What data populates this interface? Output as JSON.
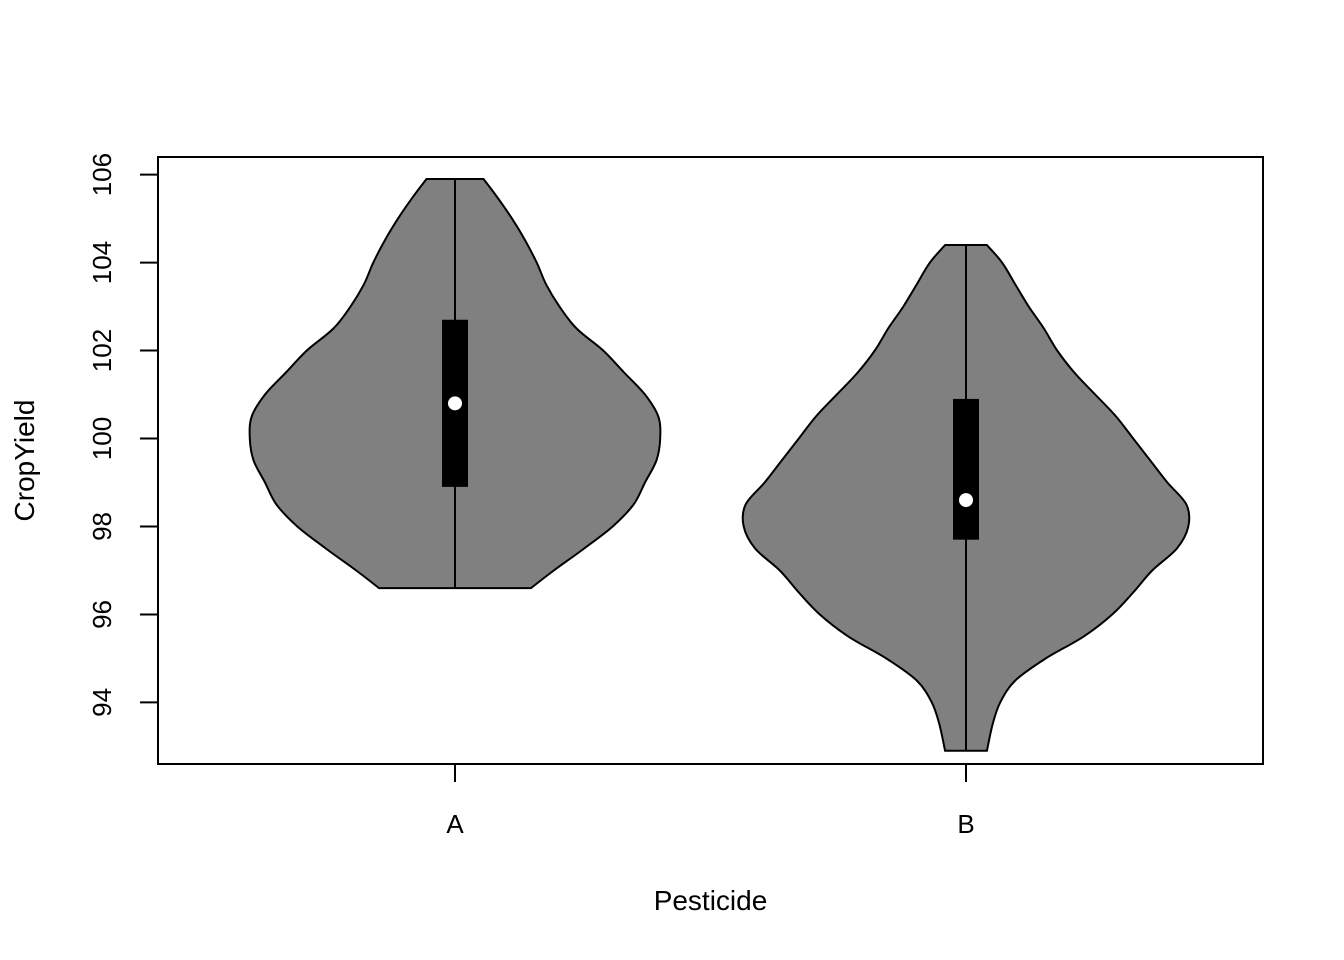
{
  "chart_data": {
    "type": "violin",
    "xlabel": "Pesticide",
    "ylabel": "CropYield",
    "ylim": [
      92.6,
      106.4
    ],
    "yticks": [
      94,
      96,
      98,
      100,
      102,
      104,
      106
    ],
    "categories": [
      "A",
      "B"
    ],
    "grid": false,
    "colors": {
      "violin_fill": "#808080",
      "box_fill": "#000000",
      "median_point": "#ffffff",
      "outline": "#000000"
    },
    "violins": [
      {
        "category": "A",
        "min": 96.6,
        "q1": 98.9,
        "median": 100.8,
        "q3": 102.7,
        "max": 105.9,
        "density_profile": [
          [
            96.6,
            0.4
          ],
          [
            97.0,
            0.52
          ],
          [
            97.5,
            0.68
          ],
          [
            98.0,
            0.83
          ],
          [
            98.5,
            0.94
          ],
          [
            99.0,
            1.0
          ],
          [
            99.5,
            1.06
          ],
          [
            100.0,
            1.08
          ],
          [
            100.5,
            1.07
          ],
          [
            101.0,
            1.0
          ],
          [
            101.5,
            0.89
          ],
          [
            102.0,
            0.78
          ],
          [
            102.5,
            0.64
          ],
          [
            103.0,
            0.55
          ],
          [
            103.5,
            0.48
          ],
          [
            104.0,
            0.43
          ],
          [
            104.5,
            0.37
          ],
          [
            105.0,
            0.3
          ],
          [
            105.5,
            0.22
          ],
          [
            105.9,
            0.15
          ]
        ]
      },
      {
        "category": "B",
        "min": 92.9,
        "q1": 97.7,
        "median": 98.6,
        "q3": 100.9,
        "max": 104.4,
        "density_profile": [
          [
            92.9,
            0.11
          ],
          [
            93.5,
            0.14
          ],
          [
            94.0,
            0.18
          ],
          [
            94.5,
            0.26
          ],
          [
            95.0,
            0.42
          ],
          [
            95.5,
            0.62
          ],
          [
            96.0,
            0.77
          ],
          [
            96.5,
            0.88
          ],
          [
            97.0,
            0.98
          ],
          [
            97.5,
            1.11
          ],
          [
            98.0,
            1.17
          ],
          [
            98.5,
            1.16
          ],
          [
            99.0,
            1.06
          ],
          [
            99.5,
            0.97
          ],
          [
            100.0,
            0.88
          ],
          [
            100.5,
            0.79
          ],
          [
            101.0,
            0.68
          ],
          [
            101.5,
            0.57
          ],
          [
            102.0,
            0.48
          ],
          [
            102.5,
            0.41
          ],
          [
            103.0,
            0.33
          ],
          [
            103.5,
            0.26
          ],
          [
            104.0,
            0.19
          ],
          [
            104.4,
            0.11
          ]
        ]
      }
    ]
  }
}
